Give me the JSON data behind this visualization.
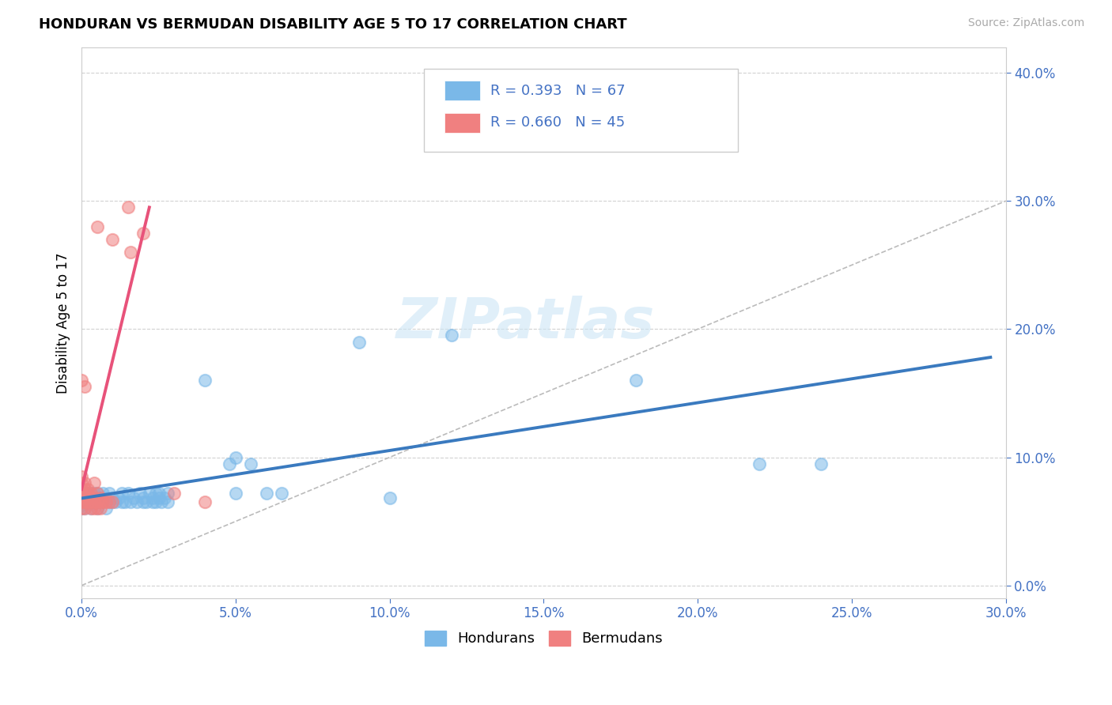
{
  "title": "HONDURAN VS BERMUDAN DISABILITY AGE 5 TO 17 CORRELATION CHART",
  "source": "Source: ZipAtlas.com",
  "ylabel": "Disability Age 5 to 17",
  "honduran_color": "#7ab8e8",
  "bermudan_color": "#f08080",
  "honduran_line_color": "#3a7abf",
  "bermudan_line_color": "#e8527a",
  "honduran_R": "0.393",
  "honduran_N": "67",
  "bermudan_R": "0.660",
  "bermudan_N": "45",
  "xmin": 0.0,
  "xmax": 0.3,
  "ymin": -0.01,
  "ymax": 0.42,
  "honduran_points": [
    [
      0.0,
      0.068
    ],
    [
      0.0,
      0.072
    ],
    [
      0.0,
      0.063
    ],
    [
      0.0,
      0.06
    ],
    [
      0.001,
      0.068
    ],
    [
      0.001,
      0.065
    ],
    [
      0.001,
      0.072
    ],
    [
      0.001,
      0.06
    ],
    [
      0.002,
      0.065
    ],
    [
      0.002,
      0.068
    ],
    [
      0.002,
      0.072
    ],
    [
      0.003,
      0.065
    ],
    [
      0.003,
      0.06
    ],
    [
      0.003,
      0.072
    ],
    [
      0.004,
      0.065
    ],
    [
      0.004,
      0.068
    ],
    [
      0.004,
      0.072
    ],
    [
      0.005,
      0.065
    ],
    [
      0.005,
      0.06
    ],
    [
      0.005,
      0.072
    ],
    [
      0.006,
      0.065
    ],
    [
      0.006,
      0.068
    ],
    [
      0.007,
      0.065
    ],
    [
      0.007,
      0.072
    ],
    [
      0.008,
      0.06
    ],
    [
      0.008,
      0.068
    ],
    [
      0.009,
      0.065
    ],
    [
      0.009,
      0.072
    ],
    [
      0.01,
      0.065
    ],
    [
      0.01,
      0.068
    ],
    [
      0.011,
      0.065
    ],
    [
      0.012,
      0.068
    ],
    [
      0.013,
      0.065
    ],
    [
      0.013,
      0.072
    ],
    [
      0.014,
      0.065
    ],
    [
      0.015,
      0.072
    ],
    [
      0.016,
      0.065
    ],
    [
      0.017,
      0.068
    ],
    [
      0.018,
      0.065
    ],
    [
      0.019,
      0.072
    ],
    [
      0.02,
      0.065
    ],
    [
      0.02,
      0.068
    ],
    [
      0.021,
      0.065
    ],
    [
      0.022,
      0.072
    ],
    [
      0.023,
      0.065
    ],
    [
      0.023,
      0.068
    ],
    [
      0.024,
      0.065
    ],
    [
      0.024,
      0.072
    ],
    [
      0.025,
      0.068
    ],
    [
      0.025,
      0.072
    ],
    [
      0.026,
      0.065
    ],
    [
      0.027,
      0.068
    ],
    [
      0.028,
      0.072
    ],
    [
      0.028,
      0.065
    ],
    [
      0.04,
      0.16
    ],
    [
      0.048,
      0.095
    ],
    [
      0.05,
      0.1
    ],
    [
      0.05,
      0.072
    ],
    [
      0.055,
      0.095
    ],
    [
      0.06,
      0.072
    ],
    [
      0.065,
      0.072
    ],
    [
      0.09,
      0.19
    ],
    [
      0.1,
      0.068
    ],
    [
      0.12,
      0.195
    ],
    [
      0.18,
      0.16
    ],
    [
      0.22,
      0.095
    ],
    [
      0.24,
      0.095
    ]
  ],
  "bermudan_points": [
    [
      0.0,
      0.068
    ],
    [
      0.0,
      0.072
    ],
    [
      0.0,
      0.075
    ],
    [
      0.0,
      0.065
    ],
    [
      0.0,
      0.06
    ],
    [
      0.0,
      0.08
    ],
    [
      0.0,
      0.085
    ],
    [
      0.0,
      0.07
    ],
    [
      0.001,
      0.065
    ],
    [
      0.001,
      0.068
    ],
    [
      0.001,
      0.072
    ],
    [
      0.001,
      0.075
    ],
    [
      0.001,
      0.06
    ],
    [
      0.001,
      0.08
    ],
    [
      0.002,
      0.065
    ],
    [
      0.002,
      0.068
    ],
    [
      0.002,
      0.072
    ],
    [
      0.002,
      0.075
    ],
    [
      0.003,
      0.065
    ],
    [
      0.003,
      0.068
    ],
    [
      0.003,
      0.06
    ],
    [
      0.003,
      0.072
    ],
    [
      0.004,
      0.065
    ],
    [
      0.004,
      0.068
    ],
    [
      0.004,
      0.06
    ],
    [
      0.004,
      0.08
    ],
    [
      0.005,
      0.065
    ],
    [
      0.005,
      0.06
    ],
    [
      0.005,
      0.072
    ],
    [
      0.006,
      0.065
    ],
    [
      0.006,
      0.06
    ],
    [
      0.006,
      0.068
    ],
    [
      0.007,
      0.065
    ],
    [
      0.008,
      0.065
    ],
    [
      0.009,
      0.065
    ],
    [
      0.01,
      0.065
    ],
    [
      0.0,
      0.16
    ],
    [
      0.001,
      0.155
    ],
    [
      0.005,
      0.28
    ],
    [
      0.01,
      0.27
    ],
    [
      0.015,
      0.295
    ],
    [
      0.016,
      0.26
    ],
    [
      0.02,
      0.275
    ],
    [
      0.03,
      0.072
    ],
    [
      0.04,
      0.065
    ]
  ],
  "honduran_trendline": [
    [
      0.0,
      0.068
    ],
    [
      0.295,
      0.178
    ]
  ],
  "bermudan_trendline": [
    [
      0.0,
      0.075
    ],
    [
      0.022,
      0.295
    ]
  ],
  "diagonal_line": [
    [
      0.0,
      0.0
    ],
    [
      0.3,
      0.3
    ]
  ],
  "watermark": "ZIPatlas",
  "background_color": "#ffffff",
  "grid_color": "#cccccc"
}
